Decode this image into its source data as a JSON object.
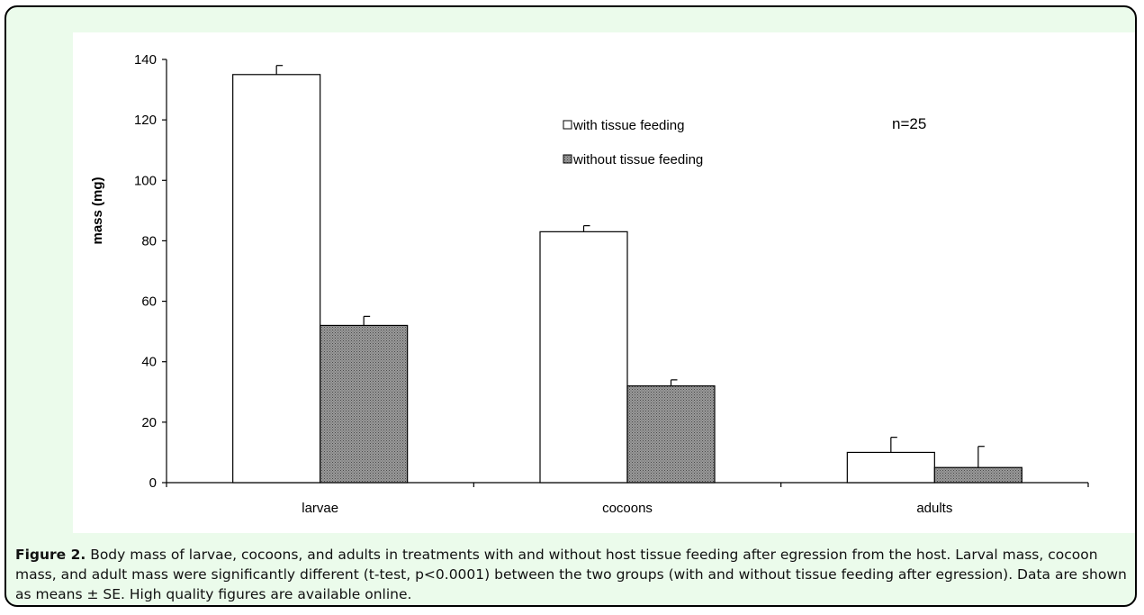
{
  "chart_data": {
    "type": "bar",
    "categories": [
      "larvae",
      "cocoons",
      "adults"
    ],
    "series": [
      {
        "name": "with tissue feeding",
        "values": [
          135,
          83,
          10
        ],
        "errors": [
          3,
          2,
          5
        ],
        "color": "#ffffff"
      },
      {
        "name": "without tissue feeding",
        "values": [
          52,
          32,
          5
        ],
        "errors": [
          3,
          2,
          7
        ],
        "color": "#8c8c8c"
      }
    ],
    "ylabel": "mass (mg)",
    "xlabel": "",
    "ylim": [
      0,
      140
    ],
    "yticks": [
      0,
      20,
      40,
      60,
      80,
      100,
      120,
      140
    ],
    "annotation": "n=25",
    "legend_position": "top-center",
    "grid": false
  },
  "caption": {
    "label": "Figure 2.",
    "text": " Body mass of larvae, cocoons, and adults in treatments with and without host tissue feeding after egression from the host. Larval mass, cocoon mass, and adult mass were significantly different (t-test, p<0.0001) between the two groups (with and without tissue feeding after egression). Data are shown as means ± SE. High quality figures are available online."
  }
}
